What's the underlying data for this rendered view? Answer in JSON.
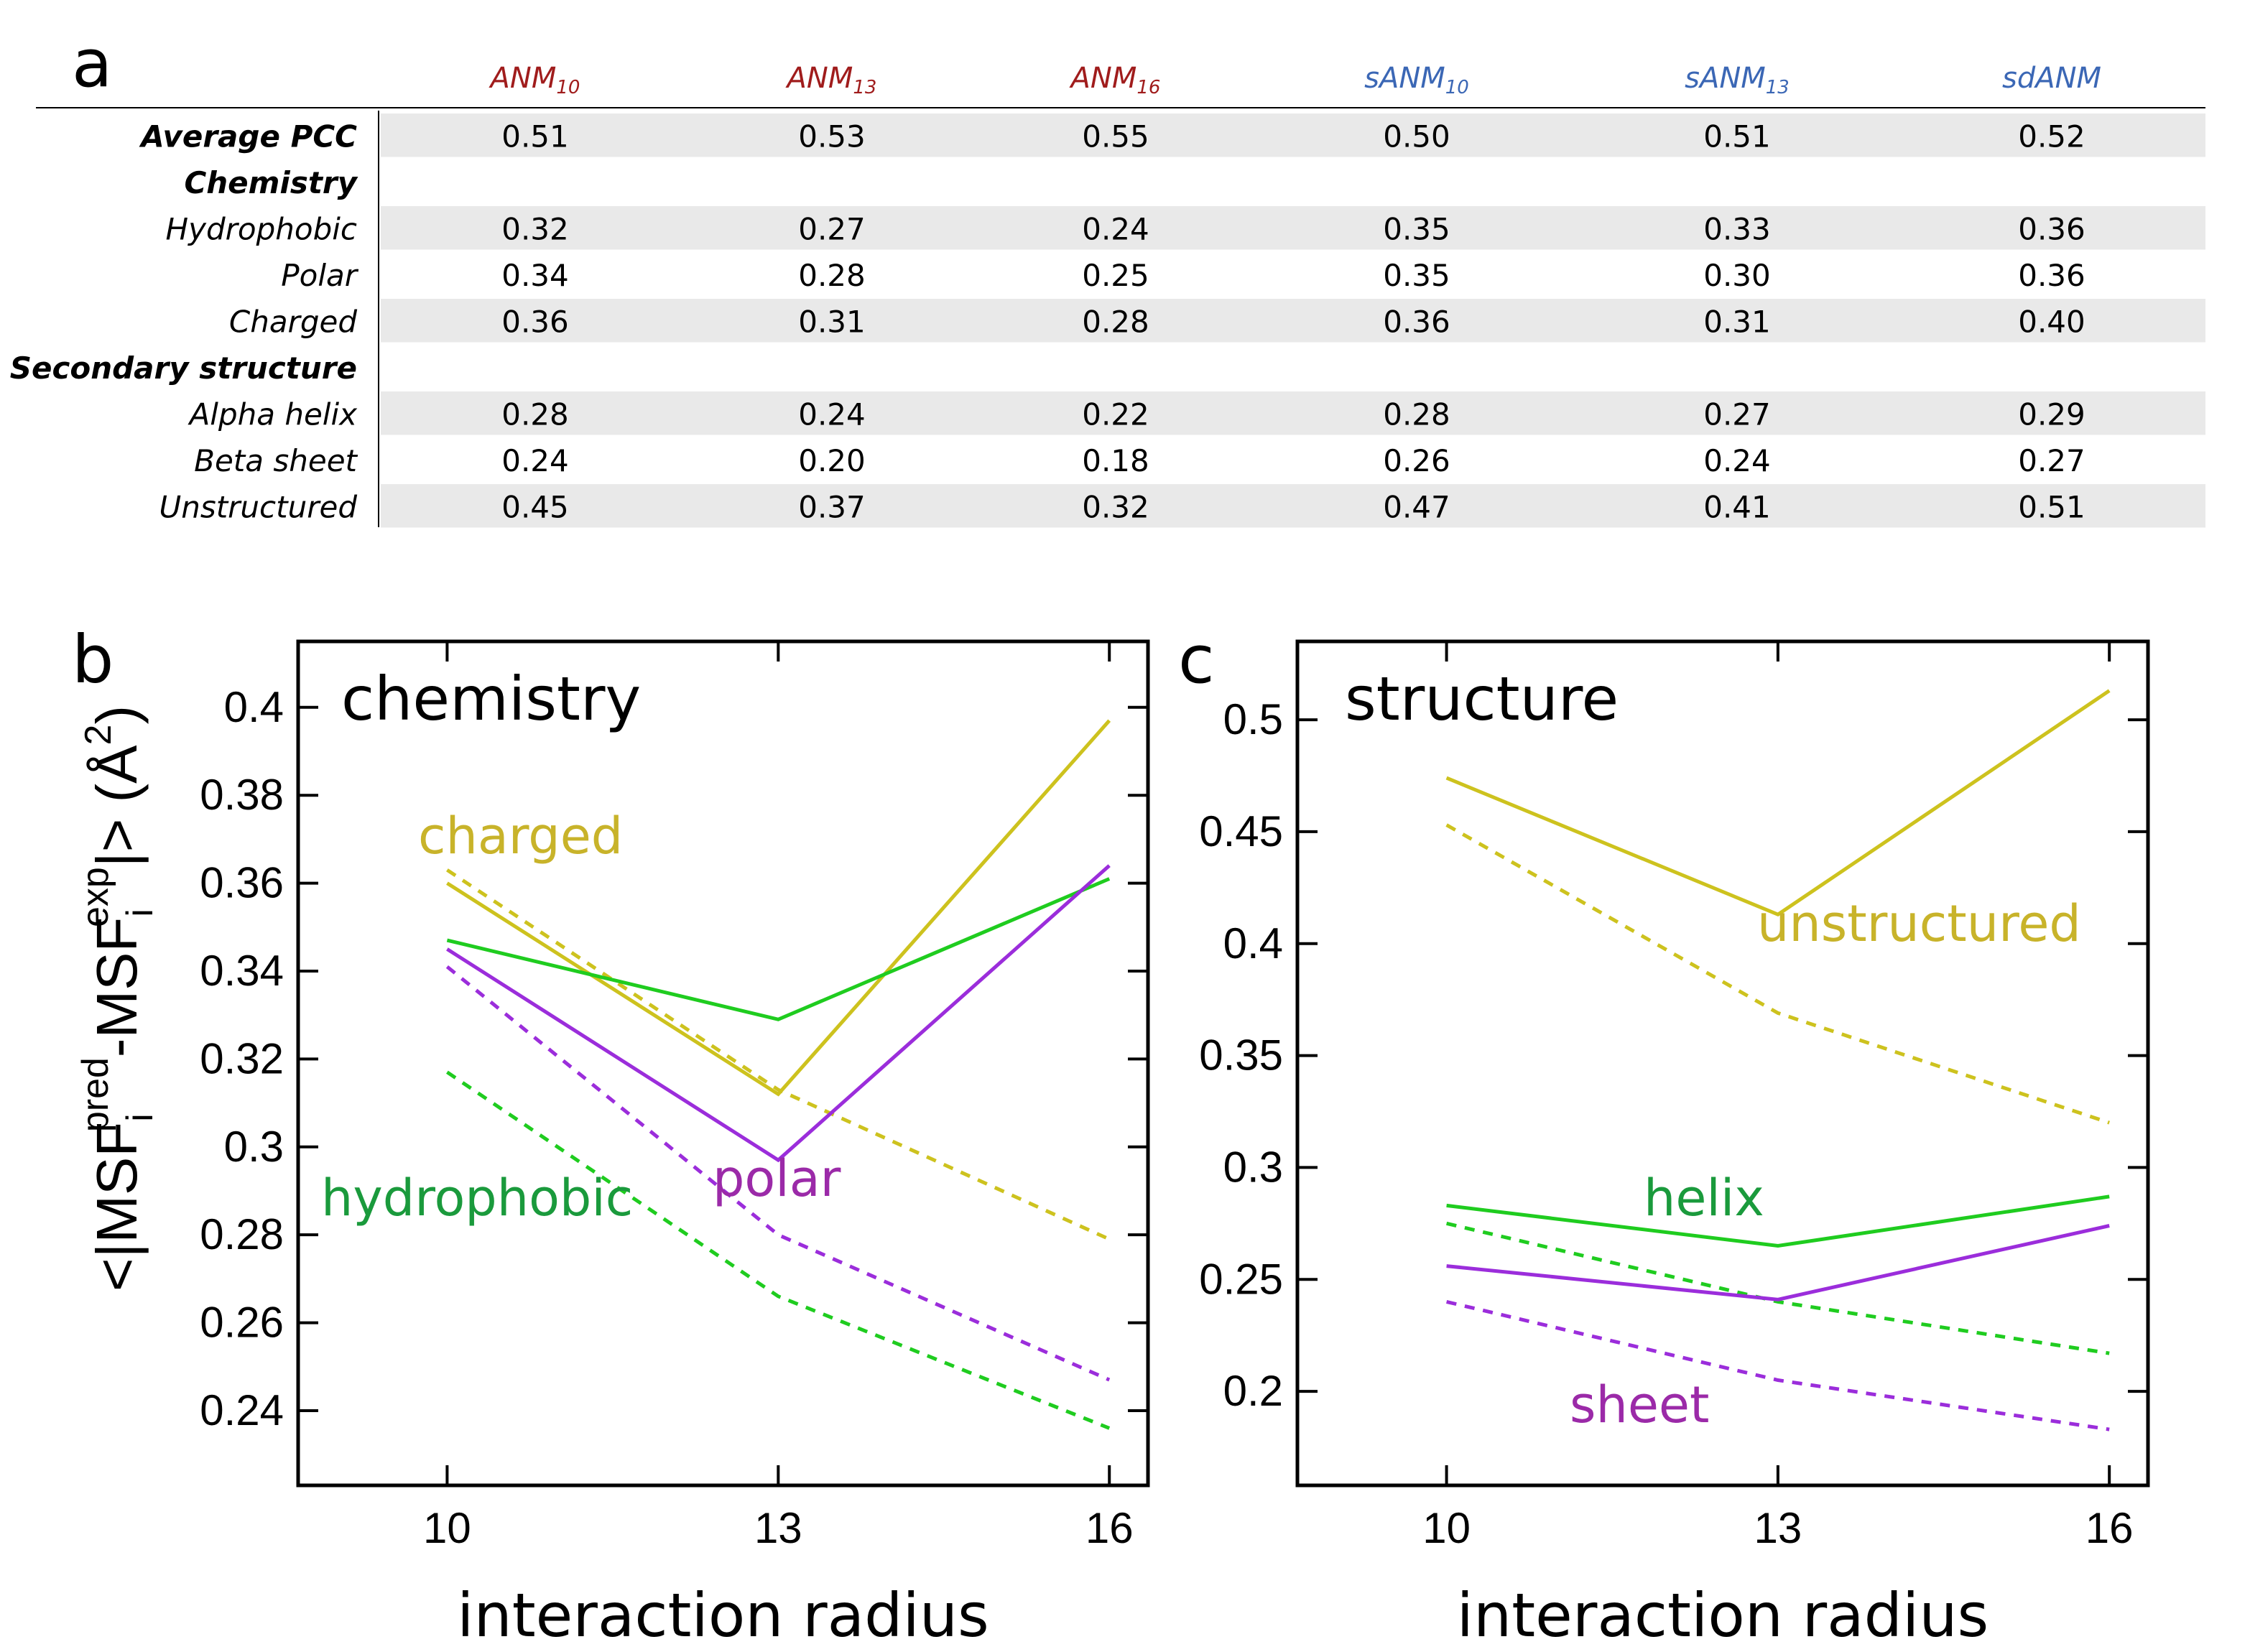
{
  "colors": {
    "anm_header": "#a01c1c",
    "sanm_header": "#3b67b5",
    "stripe": "#e9e9e9",
    "yellow": "#cdc21e",
    "green": "#1fcc1f",
    "purple": "#9b2ddb",
    "label_yellow": "#c8b32a",
    "label_green": "#1a9a3c",
    "label_purple": "#9b2aa8"
  },
  "panel_a": {
    "letter": "a",
    "columns": [
      {
        "name": "ANM",
        "sub": "10",
        "group": "anm"
      },
      {
        "name": "ANM",
        "sub": "13",
        "group": "anm"
      },
      {
        "name": "ANM",
        "sub": "16",
        "group": "anm"
      },
      {
        "name": "sANM",
        "sub": "10",
        "group": "sanm"
      },
      {
        "name": "sANM",
        "sub": "13",
        "group": "sanm"
      },
      {
        "name": "sdANM",
        "sub": "",
        "group": "sanm"
      }
    ],
    "rows": [
      {
        "label": "Average PCC",
        "bold": true,
        "stripe": true,
        "values": [
          "0.51",
          "0.53",
          "0.55",
          "0.50",
          "0.51",
          "0.52"
        ]
      },
      {
        "label": "Chemistry",
        "bold": true,
        "stripe": false,
        "values": []
      },
      {
        "label": "Hydrophobic",
        "bold": false,
        "stripe": true,
        "values": [
          "0.32",
          "0.27",
          "0.24",
          "0.35",
          "0.33",
          "0.36"
        ]
      },
      {
        "label": "Polar",
        "bold": false,
        "stripe": false,
        "values": [
          "0.34",
          "0.28",
          "0.25",
          "0.35",
          "0.30",
          "0.36"
        ]
      },
      {
        "label": "Charged",
        "bold": false,
        "stripe": true,
        "values": [
          "0.36",
          "0.31",
          "0.28",
          "0.36",
          "0.31",
          "0.40"
        ]
      },
      {
        "label": "Secondary structure",
        "bold": true,
        "stripe": false,
        "values": []
      },
      {
        "label": "Alpha helix",
        "bold": false,
        "stripe": true,
        "values": [
          "0.28",
          "0.24",
          "0.22",
          "0.28",
          "0.27",
          "0.29"
        ]
      },
      {
        "label": "Beta sheet",
        "bold": false,
        "stripe": false,
        "values": [
          "0.24",
          "0.20",
          "0.18",
          "0.26",
          "0.24",
          "0.27"
        ]
      },
      {
        "label": "Unstructured",
        "bold": false,
        "stripe": true,
        "values": [
          "0.45",
          "0.37",
          "0.32",
          "0.47",
          "0.41",
          "0.51"
        ]
      }
    ]
  },
  "ylabel": {
    "prefix": "<|MSF",
    "sub1": "i",
    "sup1": "pred",
    "mid": "-MSF",
    "sub2": "i",
    "sup2": "exp",
    "suffix": "|> (Å",
    "sup3": "2",
    "end": ")"
  },
  "chart_data": [
    {
      "type": "line",
      "panel": "b",
      "title": "chemistry",
      "xlabel": "interaction radius",
      "xlim": [
        8.65,
        16.35
      ],
      "ylim": [
        0.223,
        0.415
      ],
      "x": [
        10,
        13,
        16
      ],
      "xticks": [
        "10",
        "13",
        "16"
      ],
      "yticks": [
        "0.24",
        "0.26",
        "0.28",
        "0.3",
        "0.32",
        "0.34",
        "0.36",
        "0.38",
        "0.4"
      ],
      "series": [
        {
          "name": "charged",
          "color": "yellow",
          "style": "solid",
          "values": [
            0.36,
            0.312,
            0.397
          ]
        },
        {
          "name": "charged (dashed)",
          "color": "yellow",
          "style": "dashed",
          "values": [
            0.363,
            0.313,
            0.279
          ]
        },
        {
          "name": "hydrophobic",
          "color": "green",
          "style": "solid",
          "values": [
            0.347,
            0.329,
            0.361
          ]
        },
        {
          "name": "hydrophobic (dashed)",
          "color": "green",
          "style": "dashed",
          "values": [
            0.317,
            0.266,
            0.236
          ]
        },
        {
          "name": "polar",
          "color": "purple",
          "style": "solid",
          "values": [
            0.345,
            0.297,
            0.364
          ]
        },
        {
          "name": "polar (dashed)",
          "color": "purple",
          "style": "dashed",
          "values": [
            0.341,
            0.28,
            0.247
          ]
        }
      ],
      "annotations": [
        {
          "text": "charged",
          "color": "label_yellow"
        },
        {
          "text": "hydrophobic",
          "color": "label_green"
        },
        {
          "text": "polar",
          "color": "label_purple"
        }
      ]
    },
    {
      "type": "line",
      "panel": "c",
      "title": "structure",
      "xlabel": "interaction radius",
      "xlim": [
        8.65,
        16.35
      ],
      "ylim": [
        0.158,
        0.535
      ],
      "x": [
        10,
        13,
        16
      ],
      "xticks": [
        "10",
        "13",
        "16"
      ],
      "yticks": [
        "0.2",
        "0.25",
        "0.3",
        "0.35",
        "0.4",
        "0.45",
        "0.5"
      ],
      "series": [
        {
          "name": "unstructured",
          "color": "yellow",
          "style": "solid",
          "values": [
            0.474,
            0.413,
            0.513
          ]
        },
        {
          "name": "unstructured (dashed)",
          "color": "yellow",
          "style": "dashed",
          "values": [
            0.453,
            0.369,
            0.32
          ]
        },
        {
          "name": "helix",
          "color": "green",
          "style": "solid",
          "values": [
            0.283,
            0.265,
            0.287
          ]
        },
        {
          "name": "helix (dashed)",
          "color": "green",
          "style": "dashed",
          "values": [
            0.275,
            0.24,
            0.217
          ]
        },
        {
          "name": "sheet",
          "color": "purple",
          "style": "solid",
          "values": [
            0.256,
            0.241,
            0.274
          ]
        },
        {
          "name": "sheet (dashed)",
          "color": "purple",
          "style": "dashed",
          "values": [
            0.24,
            0.205,
            0.183
          ]
        }
      ],
      "annotations": [
        {
          "text": "unstructured",
          "color": "label_yellow"
        },
        {
          "text": "helix",
          "color": "label_green"
        },
        {
          "text": "sheet",
          "color": "label_purple"
        }
      ]
    }
  ]
}
